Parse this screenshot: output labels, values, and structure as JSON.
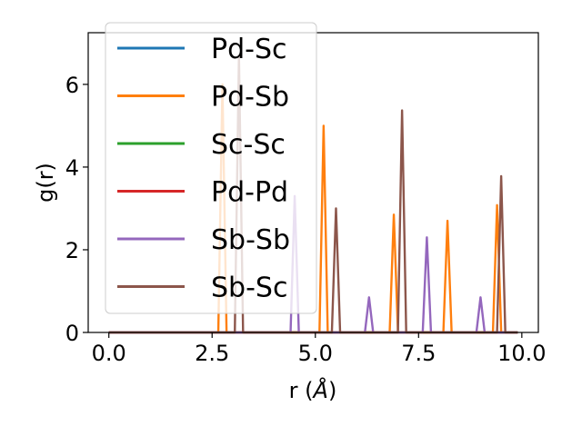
{
  "chart_data": {
    "type": "line",
    "xlabel": "r (",
    "xlabel_unit": "Å",
    "xlabel_close": ")",
    "ylabel": "g(r)",
    "xlim": [
      -0.5,
      10.4
    ],
    "ylim": [
      0,
      7.25
    ],
    "xticks": [
      0.0,
      2.5,
      5.0,
      7.5,
      10.0
    ],
    "xtick_labels": [
      "0.0",
      "2.5",
      "5.0",
      "7.5",
      "10.0"
    ],
    "yticks": [
      0,
      2,
      4,
      6
    ],
    "ytick_labels": [
      "0",
      "2",
      "4",
      "6"
    ],
    "grid": false,
    "legend_position": "upper-left",
    "x_range": [
      0.0,
      9.9
    ],
    "series": [
      {
        "name": "Pd-Sc",
        "color": "#1f77b4",
        "peaks": []
      },
      {
        "name": "Pd-Sb",
        "color": "#ff7f0e",
        "peaks": [
          [
            2.75,
            6.0
          ],
          [
            5.2,
            5.0
          ],
          [
            6.9,
            2.85
          ],
          [
            8.2,
            2.7
          ],
          [
            9.4,
            3.08
          ]
        ]
      },
      {
        "name": "Sc-Sc",
        "color": "#2ca02c",
        "peaks": []
      },
      {
        "name": "Pd-Pd",
        "color": "#d62728",
        "peaks": []
      },
      {
        "name": "Sb-Sb",
        "color": "#9467bd",
        "peaks": [
          [
            4.5,
            3.3
          ],
          [
            6.3,
            0.85
          ],
          [
            7.7,
            2.3
          ],
          [
            9.0,
            0.85
          ]
        ]
      },
      {
        "name": "Sb-Sc",
        "color": "#8c564b",
        "peaks": [
          [
            3.15,
            6.7
          ],
          [
            5.5,
            3.0
          ],
          [
            7.1,
            5.37
          ],
          [
            9.5,
            3.78
          ]
        ]
      }
    ]
  }
}
